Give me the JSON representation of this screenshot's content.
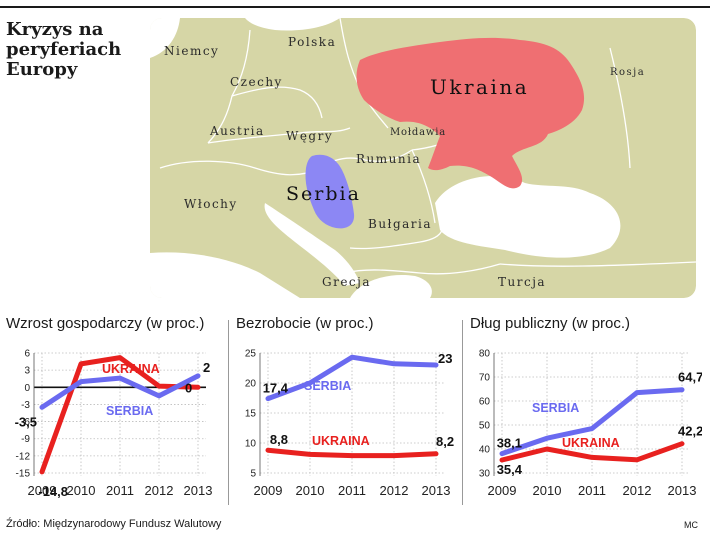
{
  "title": "Kryzys na peryferiach Europy",
  "map": {
    "countries": [
      "Niemcy",
      "Polska",
      "Czechy",
      "Austria",
      "Węgry",
      "Mołdawia",
      "Rumunia",
      "Włochy",
      "Bułgaria",
      "Grecja",
      "Turcja",
      "Rosja"
    ],
    "highlighted": [
      "Ukraina",
      "Serbia"
    ],
    "colors": {
      "land": "#d6d6a6",
      "sea": "#ffffff",
      "ukraine": "#ef6f72",
      "serbia": "#8c87f4",
      "border": "#ffffff"
    }
  },
  "colors": {
    "ukraina": "#e8211f",
    "serbia": "#6a6af0"
  },
  "chart_data": [
    {
      "type": "line",
      "title": "Wzrost gospodarczy (w proc.)",
      "x": [
        2009,
        2010,
        2011,
        2012,
        2013
      ],
      "series": [
        {
          "name": "UKRAINA",
          "values": [
            -14.8,
            4.1,
            5.2,
            0.2,
            0
          ]
        },
        {
          "name": "SERBIA",
          "values": [
            -3.5,
            1.0,
            1.6,
            -1.5,
            2
          ]
        }
      ],
      "ylim": [
        -15,
        6
      ],
      "yticks": [
        -15,
        -12,
        -9,
        -6,
        -3,
        0,
        3,
        6
      ],
      "ytick_labels": [
        "-15",
        "-12",
        "-9",
        "-6",
        "-3",
        "0",
        "3",
        "6"
      ],
      "data_labels": [
        {
          "text": "-3,5",
          "series": "SERBIA",
          "year": 2009
        },
        {
          "text": "-14,8",
          "series": "UKRAINA",
          "year": 2009
        },
        {
          "text": "2",
          "series": "SERBIA",
          "year": 2013
        },
        {
          "text": "0",
          "series": "UKRAINA",
          "year": 2013
        }
      ]
    },
    {
      "type": "line",
      "title": "Bezrobocie (w proc.)",
      "x": [
        2009,
        2010,
        2011,
        2012,
        2013
      ],
      "series": [
        {
          "name": "SERBIA",
          "values": [
            17.4,
            20,
            24.3,
            23.2,
            23
          ]
        },
        {
          "name": "UKRAINA",
          "values": [
            8.8,
            8.1,
            7.9,
            7.9,
            8.2
          ]
        }
      ],
      "ylim": [
        5,
        25
      ],
      "yticks": [
        5,
        10,
        15,
        20,
        25
      ],
      "ytick_labels": [
        "5",
        "10",
        "15",
        "20",
        "25"
      ],
      "data_labels": [
        {
          "text": "17,4",
          "series": "SERBIA",
          "year": 2009
        },
        {
          "text": "23",
          "series": "SERBIA",
          "year": 2013
        },
        {
          "text": "8,8",
          "series": "UKRAINA",
          "year": 2009
        },
        {
          "text": "8,2",
          "series": "UKRAINA",
          "year": 2013
        }
      ]
    },
    {
      "type": "line",
      "title": "Dług publiczny (w proc.)",
      "x": [
        2009,
        2010,
        2011,
        2012,
        2013
      ],
      "series": [
        {
          "name": "SERBIA",
          "values": [
            38.1,
            44.5,
            48.5,
            63.5,
            64.7
          ]
        },
        {
          "name": "UKRAINA",
          "values": [
            35.4,
            40,
            36.5,
            35.5,
            42.2
          ]
        }
      ],
      "ylim": [
        30,
        80
      ],
      "yticks": [
        30,
        40,
        50,
        60,
        70,
        80
      ],
      "ytick_labels": [
        "30",
        "40",
        "50",
        "60",
        "70",
        "80"
      ],
      "data_labels": [
        {
          "text": "38,1",
          "series": "SERBIA",
          "year": 2009
        },
        {
          "text": "64,7",
          "series": "SERBIA",
          "year": 2013
        },
        {
          "text": "35,4",
          "series": "UKRAINA",
          "year": 2009
        },
        {
          "text": "42,2",
          "series": "UKRAINA",
          "year": 2013
        }
      ]
    }
  ],
  "footer": {
    "source": "Źródło: Międzynarodowy Fundusz Walutowy",
    "credit": "MC"
  }
}
